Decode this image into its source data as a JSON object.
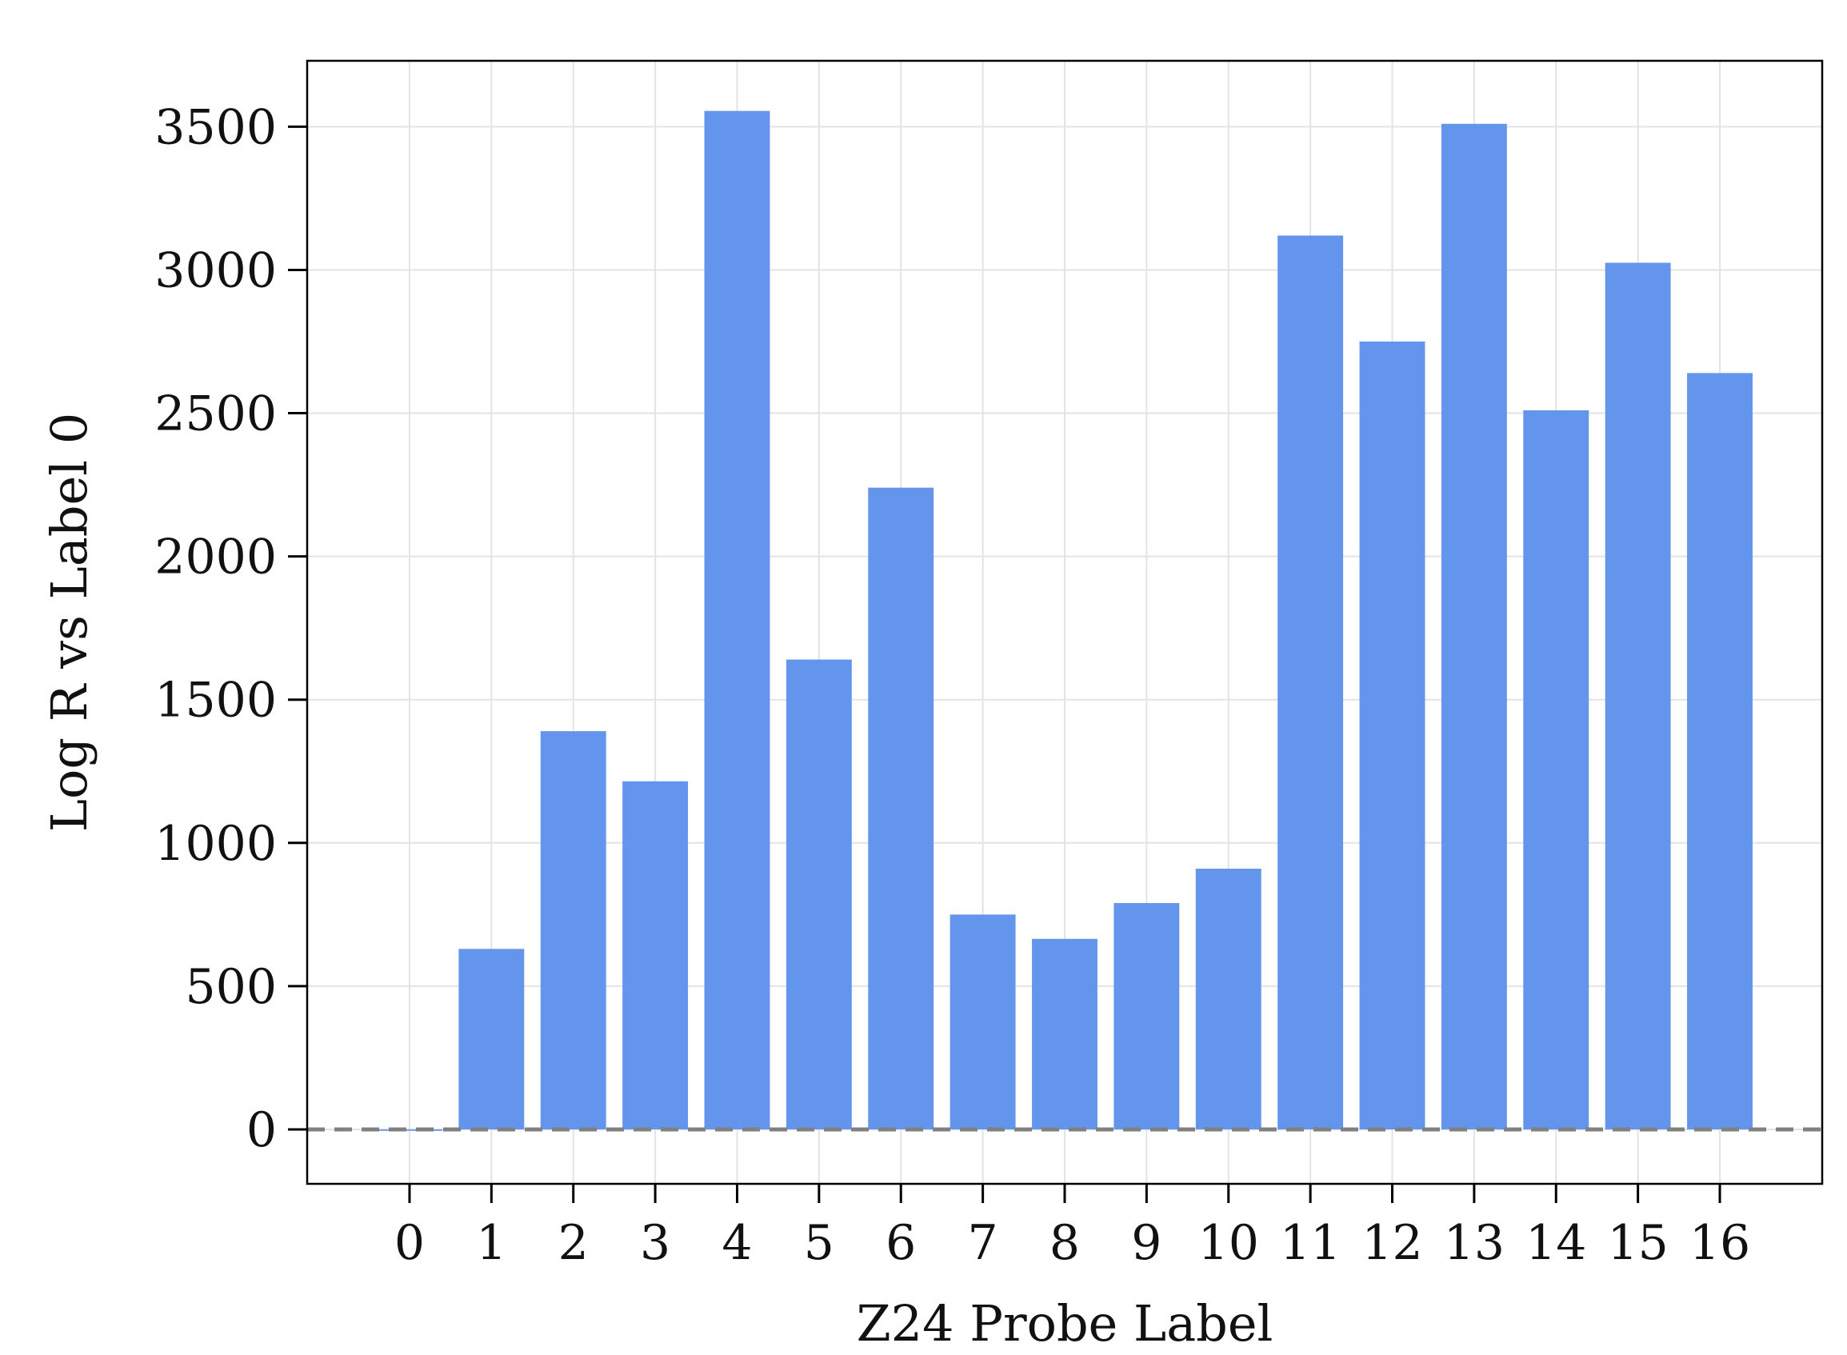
{
  "chart_data": {
    "type": "bar",
    "title": "",
    "xlabel": "Z24 Probe Label",
    "ylabel": "Log R vs Label 0",
    "categories": [
      "0",
      "1",
      "2",
      "3",
      "4",
      "5",
      "6",
      "7",
      "8",
      "9",
      "10",
      "11",
      "12",
      "13",
      "14",
      "15",
      "16"
    ],
    "values": [
      -5,
      630,
      1390,
      1215,
      3555,
      1640,
      2240,
      750,
      665,
      790,
      910,
      3120,
      2750,
      3510,
      2510,
      3025,
      2640
    ],
    "yticks": [
      0,
      500,
      1000,
      1500,
      2000,
      2500,
      3000,
      3500
    ],
    "ylim": [
      -190,
      3730
    ],
    "grid": true,
    "reference_line": {
      "y": 0,
      "style": "dashed",
      "color": "#808080"
    },
    "bar_color": "#6495ED"
  }
}
